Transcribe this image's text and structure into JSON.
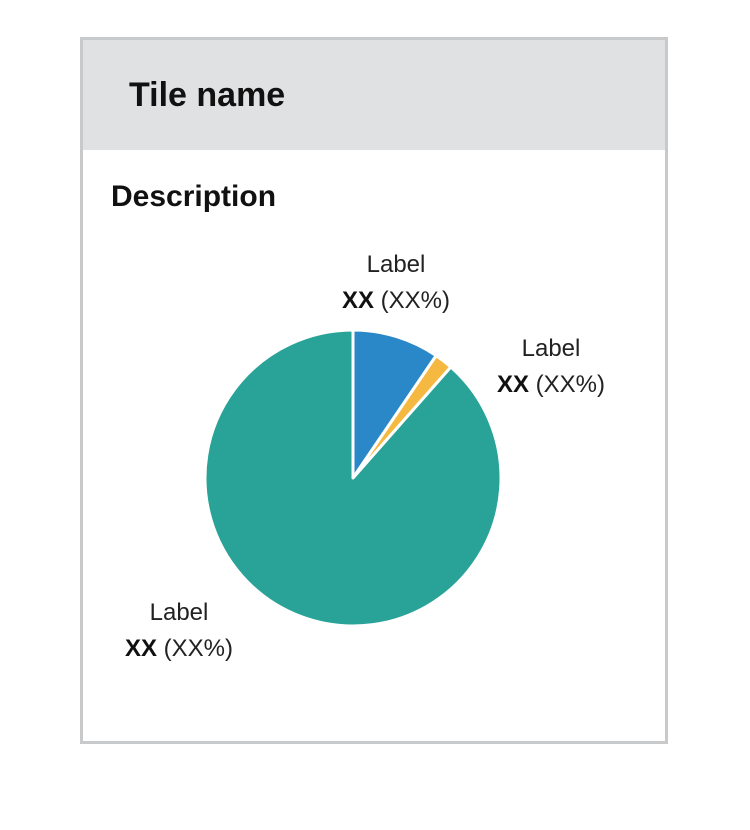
{
  "tile": {
    "title": "Tile name",
    "description": "Description"
  },
  "colors": {
    "header_bg": "#e0e1e3",
    "border": "#c8c9cb"
  },
  "chart_data": {
    "type": "pie",
    "title": "",
    "slices": [
      {
        "label": "Label",
        "value_text": "XX",
        "percent_text": "(XX%)",
        "value": 9.5,
        "color": "#2b88c8"
      },
      {
        "label": "Label",
        "value_text": "XX",
        "percent_text": "(XX%)",
        "value": 2,
        "color": "#f5b942"
      },
      {
        "label": "Label",
        "value_text": "XX",
        "percent_text": "(XX%)",
        "value": 88.5,
        "color": "#29a398"
      }
    ],
    "start_angle_deg": 0,
    "direction": "clockwise"
  }
}
